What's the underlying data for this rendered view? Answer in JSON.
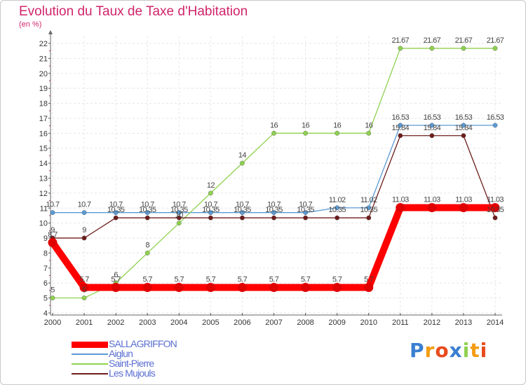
{
  "chart_data": {
    "type": "line",
    "title": "Evolution du Taux de Taxe d'Habitation",
    "unit_label": "(en %)",
    "x": [
      "2000",
      "2001",
      "2002",
      "2003",
      "2004",
      "2005",
      "2006",
      "2007",
      "2008",
      "2009",
      "2010",
      "2011",
      "2012",
      "2013",
      "2014"
    ],
    "ylim": [
      4,
      22
    ],
    "yticks": [
      4,
      5,
      6,
      7,
      8,
      9,
      10,
      11,
      12,
      13,
      14,
      15,
      16,
      17,
      18,
      19,
      20,
      21,
      22
    ],
    "grid": true,
    "legend_position": "bottom-left",
    "series": [
      {
        "name": "SALLAGRIFFON",
        "color": "#ff0000",
        "values": [
          8.7,
          5.7,
          5.7,
          5.7,
          5.7,
          5.7,
          5.7,
          5.7,
          5.7,
          5.7,
          5.7,
          11.03,
          11.03,
          11.03,
          11.03
        ],
        "labels": [
          "8.7",
          "5.7",
          "5.7",
          "5.7",
          "5.7",
          "5.7",
          "5.7",
          "5.7",
          "5.7",
          "5.7",
          "5.7",
          "11.03",
          "11.03",
          "11.03",
          "11.03"
        ]
      },
      {
        "name": "Aiglun",
        "color": "#5b9bd5",
        "values": [
          10.7,
          10.7,
          10.7,
          10.7,
          10.7,
          10.7,
          10.7,
          10.7,
          10.7,
          11.02,
          11.02,
          16.53,
          16.53,
          16.53,
          16.53
        ],
        "labels": [
          "10.7",
          "10.7",
          "10.7",
          "10.7",
          "10.7",
          "10.7",
          "10.7",
          "10.7",
          "10.7",
          "11.02",
          "11.02",
          "16.53",
          "16.53",
          "16.53",
          "16.53"
        ]
      },
      {
        "name": "Saint-Pierre",
        "color": "#8fd14f",
        "values": [
          5,
          5,
          6,
          8,
          10,
          12,
          14,
          16,
          16,
          16,
          16,
          21.67,
          21.67,
          21.67,
          21.67
        ],
        "labels": [
          "5",
          "5",
          "6",
          "8",
          "10",
          "12",
          "14",
          "16",
          "16",
          "16",
          "16",
          "21.67",
          "21.67",
          "21.67",
          "21.67"
        ]
      },
      {
        "name": "Les Mujouls",
        "color": "#6e1c1c",
        "values": [
          9,
          9,
          10.35,
          10.35,
          10.35,
          10.35,
          10.35,
          10.35,
          10.35,
          10.35,
          10.35,
          15.84,
          15.84,
          15.84,
          10.35
        ],
        "labels": [
          "9",
          "9",
          "10.35",
          "10.35",
          "10.35",
          "10.35",
          "10.35",
          "10.35",
          "10.35",
          "10.35",
          "10.35",
          "15.84",
          "15.84",
          "15.84",
          "10.35"
        ]
      }
    ]
  },
  "logo": {
    "letters": [
      "P",
      "r",
      "o",
      "x",
      "i",
      "t",
      "i"
    ],
    "colors": [
      "#3a7fd1",
      "#f39c12",
      "#e84a1c",
      "#3a7fd1",
      "#8fd14f",
      "#f39c12",
      "#e84a1c"
    ]
  }
}
